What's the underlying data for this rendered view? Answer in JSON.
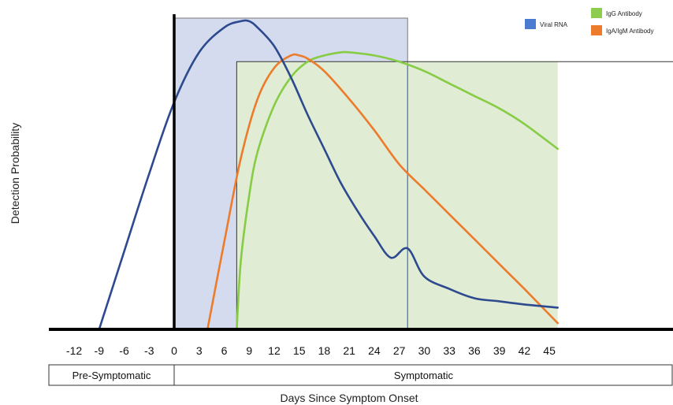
{
  "chart_data": {
    "type": "line",
    "title": "",
    "xlabel": "Days Since Symptom Onset",
    "ylabel": "Detection Probability",
    "x_ticks": [
      -12,
      -9,
      -6,
      -3,
      0,
      3,
      6,
      9,
      12,
      15,
      18,
      21,
      24,
      27,
      30,
      33,
      36,
      39,
      42,
      45
    ],
    "xlim": [
      -12,
      46
    ],
    "ylim": [
      0,
      1
    ],
    "grid": false,
    "legend_position": "top-right",
    "phases": [
      {
        "label": "Pre-Symptomatic",
        "x_start": -12,
        "x_end": 0
      },
      {
        "label": "Symptomatic",
        "x_start": 0,
        "x_end": 46
      }
    ],
    "detection_windows": [
      {
        "series": "Viral RNA",
        "x_start": 0,
        "x_end": 28,
        "y_top": 1.0,
        "color": "#d5dbef"
      },
      {
        "series": "IgG Antibody",
        "x_start": 7.5,
        "x_end": 46,
        "y_top": 0.86,
        "color": "#e0ecd3"
      }
    ],
    "series": [
      {
        "name": "Viral RNA",
        "color": "#2e4a8e",
        "x": [
          -9,
          -6,
          -3,
          0,
          3,
          6,
          8,
          9,
          10,
          12,
          14,
          16,
          18,
          20,
          22,
          24,
          26,
          28,
          30,
          33,
          36,
          39,
          42,
          46
        ],
        "y": [
          0.0,
          0.25,
          0.5,
          0.73,
          0.89,
          0.97,
          0.99,
          0.99,
          0.97,
          0.91,
          0.81,
          0.69,
          0.58,
          0.47,
          0.38,
          0.3,
          0.23,
          0.26,
          0.17,
          0.13,
          0.1,
          0.09,
          0.08,
          0.07
        ]
      },
      {
        "name": "IgA/IgM Antibody",
        "color": "#ec7b2b",
        "x": [
          4,
          6,
          8,
          10,
          12,
          14,
          15,
          16,
          18,
          21,
          24,
          27,
          30,
          33,
          36,
          39,
          42,
          46
        ],
        "y": [
          0.0,
          0.28,
          0.55,
          0.74,
          0.84,
          0.88,
          0.88,
          0.87,
          0.83,
          0.74,
          0.64,
          0.53,
          0.45,
          0.37,
          0.29,
          0.21,
          0.13,
          0.02
        ]
      },
      {
        "name": "IgG Antibody",
        "color": "#86cc44",
        "x": [
          7.5,
          8,
          9,
          10,
          12,
          14,
          16,
          18,
          20,
          21,
          24,
          27,
          30,
          33,
          36,
          39,
          42,
          46
        ],
        "y": [
          0.0,
          0.22,
          0.43,
          0.57,
          0.72,
          0.81,
          0.86,
          0.88,
          0.89,
          0.89,
          0.88,
          0.86,
          0.83,
          0.79,
          0.75,
          0.71,
          0.66,
          0.58
        ]
      }
    ],
    "legend": [
      {
        "label": "Viral RNA",
        "color": "#4a7bd0"
      },
      {
        "label": "IgG Antibody",
        "color": "#8ccd50"
      },
      {
        "label": "IgA/IgM Antibody",
        "color": "#ec7b2b"
      }
    ]
  }
}
